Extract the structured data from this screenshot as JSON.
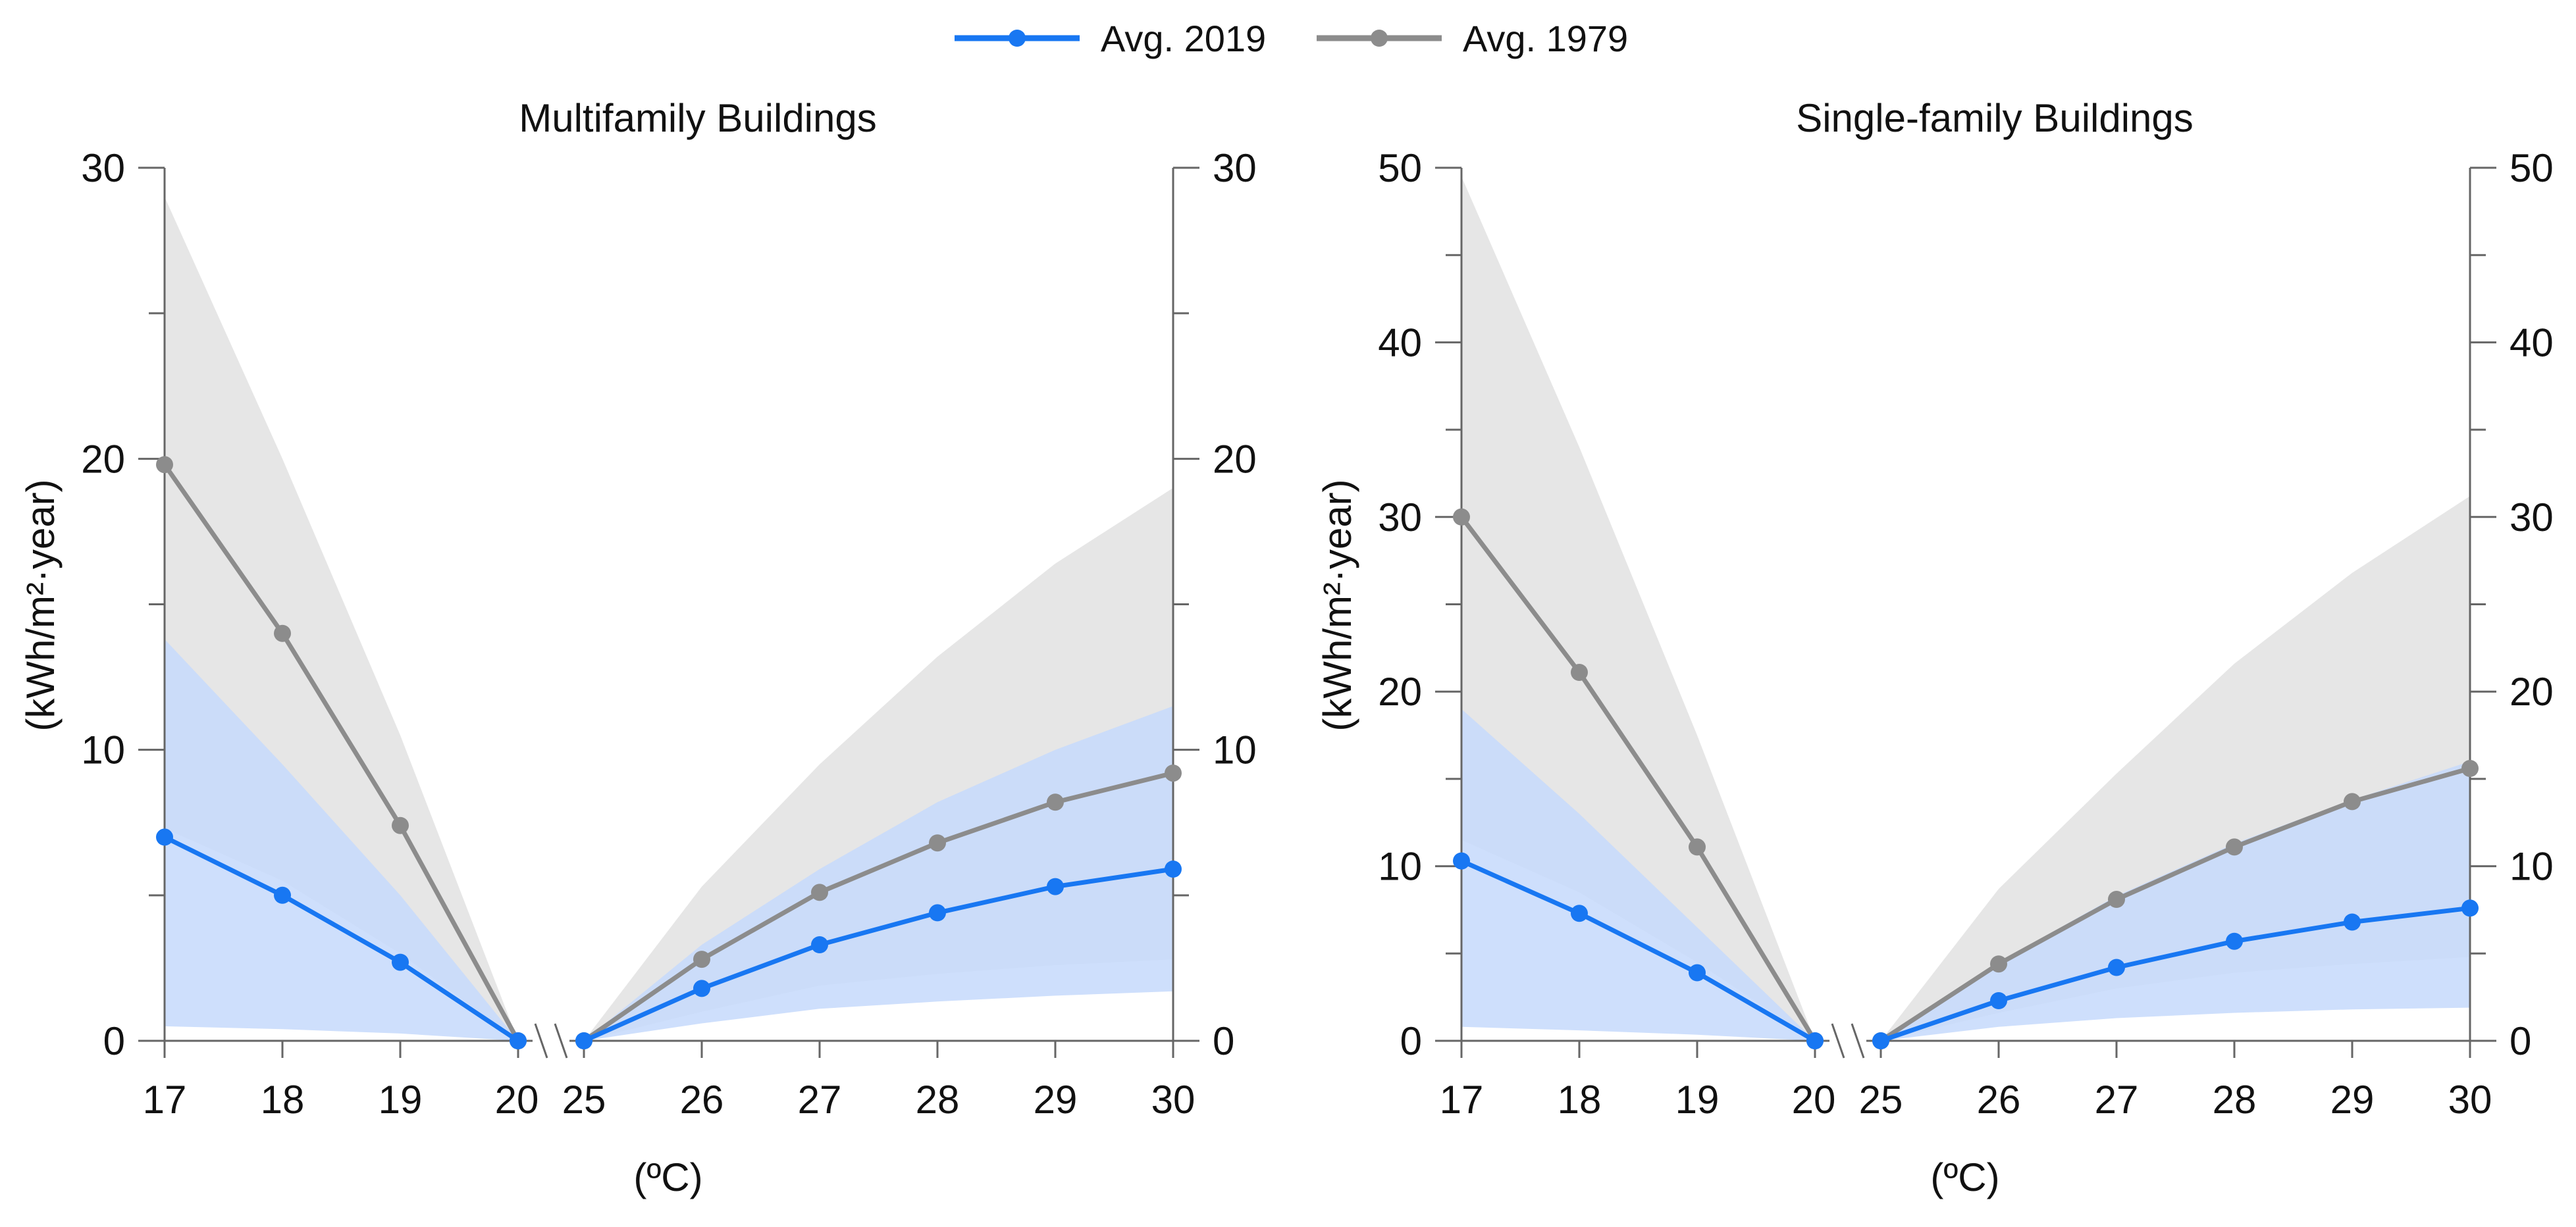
{
  "legend": {
    "items": [
      {
        "label": "Avg. 2019",
        "color": "#1877f2"
      },
      {
        "label": "Avg. 1979",
        "color": "#8c8c8c"
      }
    ]
  },
  "colors": {
    "band_1979": "#e6e6e6",
    "band_2019": "#c6d9fb",
    "band_overlap": "#bdc8e6",
    "axis": "#666666"
  },
  "chart_data": [
    {
      "type": "line",
      "title": "Multifamily Buildings",
      "xlabel": "(ºC)",
      "ylabel": "(kWh/m²·year)",
      "ylim": [
        0,
        30
      ],
      "yticks": [
        0,
        10,
        20,
        30
      ],
      "x_left": [
        17,
        18,
        19,
        20
      ],
      "x_right": [
        25,
        26,
        27,
        28,
        29,
        30
      ],
      "axis_break_between": [
        20,
        25
      ],
      "legend_position": "top-center",
      "series": [
        {
          "name": "Avg. 2019",
          "left": [
            7.0,
            5.0,
            2.7,
            0.0
          ],
          "right": [
            0.0,
            1.8,
            3.3,
            4.4,
            5.3,
            5.9
          ],
          "band_low_left": [
            0.5,
            0.4,
            0.25,
            0.0
          ],
          "band_low_right": [
            0.0,
            0.6,
            1.1,
            1.35,
            1.55,
            1.7
          ],
          "band_high_left": [
            13.8,
            9.5,
            5.0,
            0.0
          ],
          "band_high_right": [
            0.0,
            3.3,
            5.9,
            8.2,
            10.0,
            11.5
          ]
        },
        {
          "name": "Avg. 1979",
          "left": [
            19.8,
            14.0,
            7.4,
            0.0
          ],
          "right": [
            0.0,
            2.8,
            5.1,
            6.8,
            8.2,
            9.2
          ],
          "band_low_left": [
            7.3,
            5.5,
            3.0,
            0.0
          ],
          "band_low_right": [
            0.0,
            1.0,
            1.9,
            2.3,
            2.6,
            2.8
          ],
          "band_high_left": [
            29.0,
            20.0,
            10.5,
            0.0
          ],
          "band_high_right": [
            0.0,
            5.3,
            9.5,
            13.2,
            16.4,
            19.0
          ]
        }
      ]
    },
    {
      "type": "line",
      "title": "Single-family Buildings",
      "xlabel": "(ºC)",
      "ylabel": "(kWh/m²·year)",
      "ylim": [
        0,
        50
      ],
      "yticks": [
        0,
        10,
        20,
        30,
        40,
        50
      ],
      "x_left": [
        17,
        18,
        19,
        20
      ],
      "x_right": [
        25,
        26,
        27,
        28,
        29,
        30
      ],
      "axis_break_between": [
        20,
        25
      ],
      "legend_position": "top-center",
      "series": [
        {
          "name": "Avg. 2019",
          "left": [
            10.3,
            7.3,
            3.9,
            0.0
          ],
          "right": [
            0.0,
            2.3,
            4.2,
            5.7,
            6.8,
            7.6
          ],
          "band_low_left": [
            0.8,
            0.6,
            0.35,
            0.0
          ],
          "band_low_right": [
            0.0,
            0.8,
            1.3,
            1.6,
            1.8,
            1.9
          ],
          "band_high_left": [
            19.0,
            13.0,
            6.5,
            0.0
          ],
          "band_high_right": [
            0.0,
            4.5,
            8.3,
            11.3,
            13.8,
            16.0
          ]
        },
        {
          "name": "Avg. 1979",
          "left": [
            30.0,
            21.1,
            11.1,
            0.0
          ],
          "right": [
            0.0,
            4.4,
            8.1,
            11.1,
            13.7,
            15.6
          ],
          "band_low_left": [
            11.5,
            8.5,
            4.5,
            0.0
          ],
          "band_low_right": [
            0.0,
            1.6,
            3.0,
            3.9,
            4.4,
            4.8
          ],
          "band_high_left": [
            49.5,
            34.0,
            17.5,
            0.0
          ],
          "band_high_right": [
            0.0,
            8.7,
            15.3,
            21.6,
            26.8,
            31.2
          ]
        }
      ]
    }
  ]
}
